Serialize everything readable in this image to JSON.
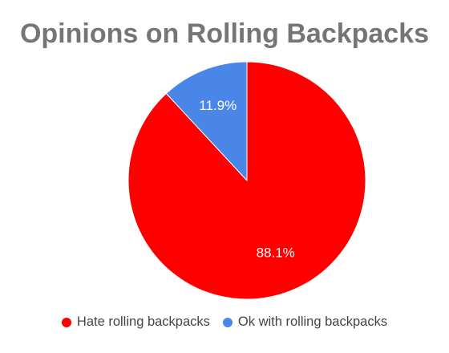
{
  "chart_data": {
    "type": "pie",
    "title": "Opinions on Rolling Backpacks",
    "slices": [
      {
        "name": "Hate rolling backpacks",
        "value": 88.1,
        "label": "88.1%",
        "color": "#ff0000"
      },
      {
        "name": "Ok with rolling backpacks",
        "value": 11.9,
        "label": "11.9%",
        "color": "#4a86e8"
      }
    ],
    "legend_position": "bottom"
  }
}
